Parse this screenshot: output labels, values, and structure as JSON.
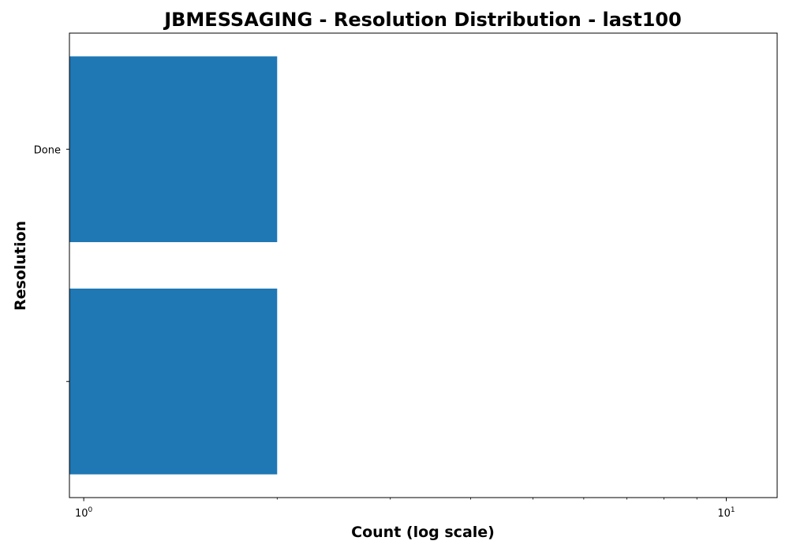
{
  "chart_data": {
    "type": "bar",
    "orientation": "horizontal",
    "title": "JBMESSAGING - Resolution Distribution - last100",
    "xlabel": "Count (log scale)",
    "ylabel": "Resolution",
    "categories": [
      "Done",
      ""
    ],
    "values": [
      2,
      2
    ],
    "xscale": "log",
    "xlim": [
      0.95,
      12
    ],
    "x_major_ticks": [
      {
        "value": 1,
        "base": "10",
        "exp": "0"
      },
      {
        "value": 10,
        "base": "10",
        "exp": "1"
      }
    ],
    "x_minor_ticks": [
      0.9,
      2,
      3,
      4,
      5,
      6,
      7,
      8,
      9
    ],
    "bar_color": "#1f77b4",
    "grid": false,
    "legend": "none"
  }
}
